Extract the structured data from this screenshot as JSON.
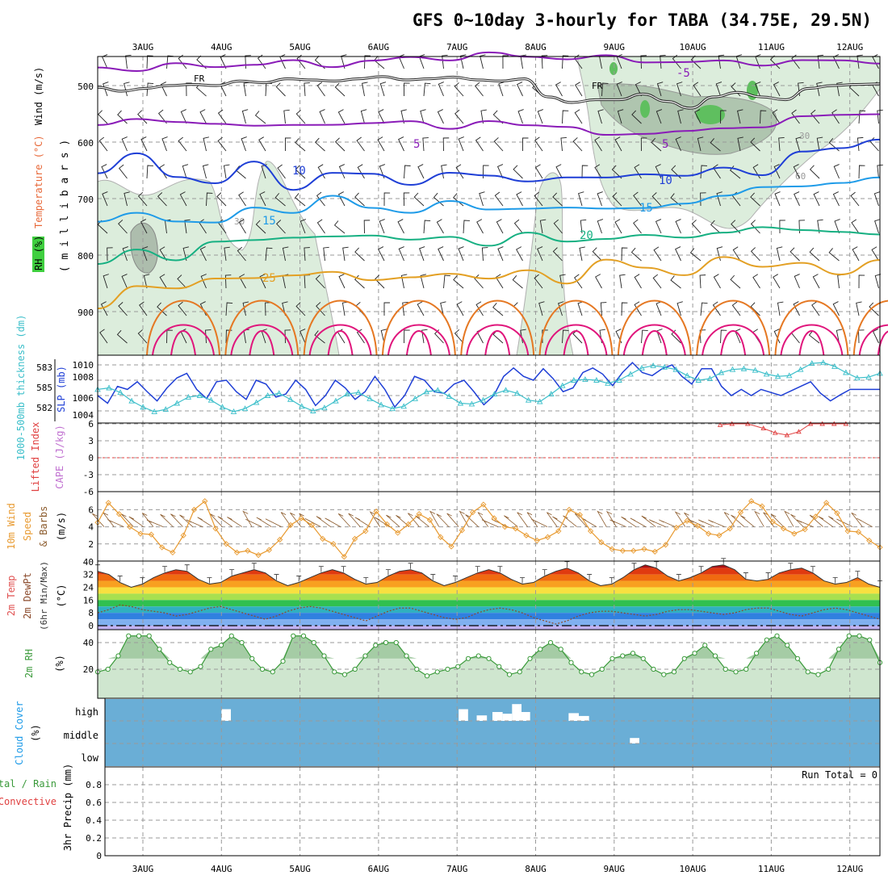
{
  "title": "GFS 0~10day 3-hourly for TABA (34.75E, 29.5N)",
  "colors": {
    "temp_purple": "#8a1cb8",
    "temp_blue": "#1f3fd6",
    "temp_lightblue": "#1e9be8",
    "temp_green": "#16b082",
    "temp_orange": "#e3a024",
    "temp_darkorange": "#e57823",
    "temp_magenta": "#e0167c",
    "rh_green": "#cfe6cf",
    "slp_line": "#1f3fd6",
    "thick_line": "#3cbfca",
    "li_line": "#e04040",
    "wind_line": "#e89a30",
    "rh2m_line": "#3a9a3a",
    "cloud_fill": "#6aaed6"
  },
  "chart_data": [
    {
      "panel": "upper-air",
      "type": "line",
      "x_axis": {
        "categories": [
          "3AUG",
          "4AUG",
          "5AUG",
          "6AUG",
          "7AUG",
          "8AUG",
          "9AUG",
          "10AUG",
          "11AUG",
          "12AUG"
        ],
        "range_days": [
          0,
          9.85
        ]
      },
      "y_axis": {
        "label_parts": [
          "RH (%)",
          "Temperature (°C)",
          "Wind (m/s)"
        ],
        "unit_label": "( m i l l i b a r s )",
        "ticks": [
          500,
          600,
          700,
          800,
          900
        ],
        "ylim": [
          1000,
          450
        ]
      },
      "freezing_label": "FR",
      "isotherms": [
        {
          "label": "-5",
          "color": "purple",
          "values": [
            468,
            470,
            466,
            464,
            462,
            460,
            462,
            458,
            452,
            450,
            446,
            448,
            450,
            452,
            455,
            458,
            460,
            459,
            458,
            457,
            456
          ]
        },
        {
          "label": "5",
          "color": "purple",
          "values": [
            565,
            560,
            568,
            562,
            575,
            570,
            565,
            572,
            560,
            575,
            568,
            565,
            575,
            590,
            580,
            585,
            575,
            570,
            560,
            548,
            550
          ]
        },
        {
          "label": "10",
          "color": "blue",
          "values": [
            650,
            625,
            660,
            670,
            640,
            680,
            655,
            660,
            670,
            658,
            660,
            665,
            668,
            660,
            655,
            665,
            640,
            660,
            620,
            605,
            600
          ]
        },
        {
          "label": "15",
          "color": "lightblue",
          "values": [
            740,
            730,
            735,
            745,
            718,
            720,
            700,
            715,
            722,
            710,
            715,
            718,
            720,
            712,
            720,
            710,
            690,
            685,
            676,
            670,
            668
          ]
        },
        {
          "label": "20",
          "color": "green",
          "values": [
            820,
            790,
            805,
            782,
            770,
            768,
            772,
            760,
            775,
            770,
            778,
            765,
            775,
            768,
            770,
            765,
            760,
            755,
            750,
            762,
            765
          ]
        },
        {
          "label": "25",
          "color": "orange",
          "values": [
            900,
            850,
            860,
            845,
            835,
            840,
            830,
            840,
            845,
            830,
            840,
            832,
            845,
            810,
            825,
            830,
            808,
            820,
            810,
            840,
            805
          ]
        }
      ],
      "rh_labels": [
        "30",
        "30",
        "60"
      ]
    },
    {
      "panel": "slp-thickness",
      "type": "line",
      "y_left_label": "1000-500mb thickness (dm)",
      "y_left_ticks": [
        "583",
        "585",
        "582"
      ],
      "y_right_label": "SLP (mb)",
      "y_right_ticks": [
        "1010",
        "1008",
        "1006",
        "1004"
      ],
      "slp_range": [
        1002,
        1011
      ],
      "series": [
        {
          "name": "SLP",
          "values": [
            1006.0,
            1005.0,
            1007.2,
            1006.8,
            1007.8,
            1006.5,
            1005.3,
            1007.0,
            1008.3,
            1008.9,
            1006.8,
            1005.6,
            1007.8,
            1008.0,
            1006.5,
            1005.5,
            1008.0,
            1007.5,
            1005.8,
            1006.2,
            1008.0,
            1006.8,
            1004.7,
            1006.0,
            1008.0,
            1007.0,
            1005.5,
            1006.5,
            1008.5,
            1006.8,
            1004.5,
            1006.0,
            1008.5,
            1008.0,
            1006.5,
            1006.3,
            1007.5,
            1008.0,
            1006.5,
            1004.8,
            1006.0,
            1008.5,
            1009.6,
            1008.5,
            1008.0,
            1009.5,
            1008.2,
            1006.5,
            1007.0,
            1009.0,
            1009.6,
            1008.8,
            1007.3,
            1009.0,
            1010.3,
            1009.0,
            1008.6,
            1009.5,
            1010.0,
            1008.5,
            1007.5,
            1009.5,
            1009.5,
            1007.2,
            1006.0,
            1006.8,
            1006.0,
            1006.8,
            1006.4,
            1006.0,
            1006.6,
            1007.2,
            1007.8,
            1006.3,
            1005.3,
            1006.1,
            1006.8,
            1006.8,
            1006.8,
            1006.8
          ]
        },
        {
          "name": "1000-500mb thickness",
          "values": [
            1006.8,
            1007.0,
            1006.4,
            1005.3,
            1004.5,
            1003.9,
            1004.2,
            1005.0,
            1005.8,
            1006.0,
            1005.4,
            1004.5,
            1003.9,
            1004.3,
            1005.1,
            1006.0,
            1006.3,
            1005.5,
            1004.6,
            1004.0,
            1004.4,
            1005.3,
            1006.2,
            1006.4,
            1005.6,
            1004.8,
            1004.3,
            1004.6,
            1005.6,
            1006.5,
            1006.7,
            1005.9,
            1005.0,
            1004.9,
            1005.4,
            1006.2,
            1006.7,
            1006.3,
            1005.4,
            1005.2,
            1006.2,
            1007.3,
            1008.0,
            1008.1,
            1008.0,
            1007.6,
            1008.0,
            1008.8,
            1009.6,
            1009.9,
            1009.7,
            1009.4,
            1008.6,
            1008.0,
            1008.2,
            1009.0,
            1009.4,
            1009.5,
            1009.3,
            1008.8,
            1008.5,
            1008.6,
            1009.4,
            1010.2,
            1010.3,
            1009.8,
            1009.0,
            1008.3,
            1008.4,
            1008.9
          ]
        }
      ]
    },
    {
      "panel": "stability",
      "type": "line",
      "y_labels": [
        "Lifted Index",
        "CAPE (J/kg)"
      ],
      "ticks": [
        "-6",
        "-3",
        "0",
        "3",
        "6"
      ],
      "ylim": [
        -6,
        6
      ],
      "series": [
        {
          "name": "Lifted Index",
          "x": [
            7.35,
            7.5,
            7.7,
            7.9,
            8.05,
            8.2,
            8.35,
            8.5,
            8.65,
            8.8,
            8.95
          ],
          "values": [
            5.8,
            6.0,
            6.0,
            5.2,
            4.4,
            4.0,
            4.6,
            6.0,
            6.0,
            6.0,
            6.0
          ]
        }
      ]
    },
    {
      "panel": "wind-10m",
      "type": "line",
      "y_labels": [
        "10m Wind",
        "Speed",
        "& Barbs"
      ],
      "y_unit": "(m/s)",
      "ticks": [
        "2",
        "4",
        "6"
      ],
      "ylim": [
        0,
        8
      ],
      "series": [
        {
          "name": "10m Wind Speed",
          "values": [
            4.5,
            6.8,
            5.5,
            4.0,
            3.2,
            3.1,
            1.6,
            1.0,
            3.0,
            6.0,
            7.0,
            3.8,
            2.0,
            1.0,
            1.2,
            0.7,
            1.3,
            2.5,
            4.2,
            5.0,
            4.2,
            2.6,
            2.0,
            0.5,
            2.6,
            3.5,
            5.8,
            4.3,
            3.3,
            4.3,
            5.5,
            4.8,
            2.8,
            1.7,
            3.6,
            5.7,
            6.6,
            5.0,
            4.0,
            3.8,
            3.0,
            2.4,
            2.8,
            3.5,
            6.0,
            5.4,
            3.5,
            2.2,
            1.4,
            1.2,
            1.2,
            1.4,
            1.1,
            1.9,
            3.9,
            4.7,
            4.1,
            3.2,
            3.0,
            3.8,
            5.7,
            7.0,
            6.4,
            4.6,
            3.8,
            3.2,
            3.7,
            5.2,
            6.8,
            5.6,
            3.5,
            3.4,
            2.4,
            1.6
          ]
        }
      ]
    },
    {
      "panel": "temperature-2m",
      "type": "area",
      "y_labels": [
        "2m Temp",
        "2m DewPt",
        "(6hr Min/Max)"
      ],
      "y_unit": "(°C)",
      "ticks": [
        "0",
        "8",
        "16",
        "24",
        "32",
        "40"
      ],
      "ylim": [
        0,
        40
      ],
      "series": [
        {
          "name": "2m Temp",
          "values": [
            34,
            32,
            27,
            24,
            26,
            30,
            33,
            35,
            34,
            29,
            26,
            27,
            31,
            33,
            35,
            33,
            28,
            25,
            27,
            30,
            33,
            35,
            33,
            29,
            26,
            27,
            31,
            34,
            35,
            33,
            28,
            25,
            27,
            30,
            33,
            35,
            33,
            29,
            26,
            27,
            31,
            34,
            36,
            33,
            28,
            25,
            26,
            30,
            35,
            38,
            36,
            31,
            28,
            30,
            33,
            37,
            38,
            35,
            29,
            28,
            29,
            33,
            35,
            36,
            33,
            28,
            26,
            27,
            30,
            26,
            24
          ]
        },
        {
          "name": "2m DewPt",
          "values": [
            8,
            10,
            13,
            12,
            10,
            9,
            8,
            6,
            7,
            9,
            11,
            12,
            10,
            8,
            6,
            4,
            6,
            9,
            11,
            12,
            11,
            9,
            7,
            5,
            3,
            6,
            9,
            11,
            11,
            9,
            7,
            5,
            4,
            5,
            8,
            10,
            11,
            10,
            8,
            5,
            3,
            1,
            3,
            6,
            8,
            9,
            9,
            8,
            7,
            6,
            7,
            9,
            10,
            10,
            9,
            8,
            7,
            8,
            10,
            11,
            11,
            9,
            7,
            6,
            8,
            10,
            11,
            10,
            8,
            6,
            4
          ]
        }
      ]
    },
    {
      "panel": "rh-2m",
      "type": "area",
      "y_labels": [
        "2m RH"
      ],
      "y_unit": "(%)",
      "ticks": [
        "20",
        "40"
      ],
      "ylim": [
        0,
        52
      ],
      "series": [
        {
          "name": "2m RH",
          "values": [
            18,
            20,
            30,
            45,
            45,
            45,
            35,
            25,
            20,
            18,
            22,
            35,
            38,
            45,
            40,
            28,
            20,
            18,
            26,
            45,
            45,
            40,
            30,
            18,
            16,
            20,
            30,
            38,
            40,
            40,
            30,
            20,
            15,
            18,
            20,
            22,
            28,
            30,
            28,
            22,
            16,
            18,
            28,
            35,
            40,
            35,
            25,
            18,
            16,
            20,
            28,
            30,
            32,
            28,
            20,
            16,
            18,
            28,
            32,
            38,
            30,
            20,
            18,
            20,
            32,
            42,
            45,
            38,
            28,
            18,
            16,
            20,
            35,
            45,
            45,
            42,
            25
          ]
        }
      ]
    },
    {
      "panel": "cloud-cover",
      "type": "bar",
      "y_labels": [
        "Cloud Cover",
        "(%)"
      ],
      "levels": [
        "high",
        "middle",
        "low"
      ],
      "gaps": [
        {
          "level": "high",
          "x0": 1.0,
          "x1": 1.12,
          "cover": 85
        },
        {
          "level": "high",
          "x0": 4.02,
          "x1": 4.14,
          "cover": 85
        },
        {
          "level": "high",
          "x0": 4.25,
          "x1": 4.38,
          "cover": 96
        },
        {
          "level": "high",
          "x0": 4.45,
          "x1": 4.58,
          "cover": 90
        },
        {
          "level": "high",
          "x0": 4.58,
          "x1": 4.7,
          "cover": 93
        },
        {
          "level": "high",
          "x0": 4.7,
          "x1": 4.82,
          "cover": 76
        },
        {
          "level": "high",
          "x0": 4.82,
          "x1": 4.93,
          "cover": 90
        },
        {
          "level": "high",
          "x0": 5.42,
          "x1": 5.55,
          "cover": 92
        },
        {
          "level": "high",
          "x0": 5.55,
          "x1": 5.68,
          "cover": 97
        },
        {
          "level": "middle",
          "x0": 6.2,
          "x1": 6.32,
          "cover": 96
        }
      ]
    },
    {
      "panel": "precip",
      "type": "bar",
      "y_labels": [
        "Total / Rain",
        "Convective",
        "3hr Precip (mm)"
      ],
      "ticks": [
        "0",
        "0.2",
        "0.4",
        "0.6",
        "0.8"
      ],
      "ylim": [
        0,
        1
      ],
      "values": [],
      "run_total": "Run Total = 0"
    }
  ]
}
